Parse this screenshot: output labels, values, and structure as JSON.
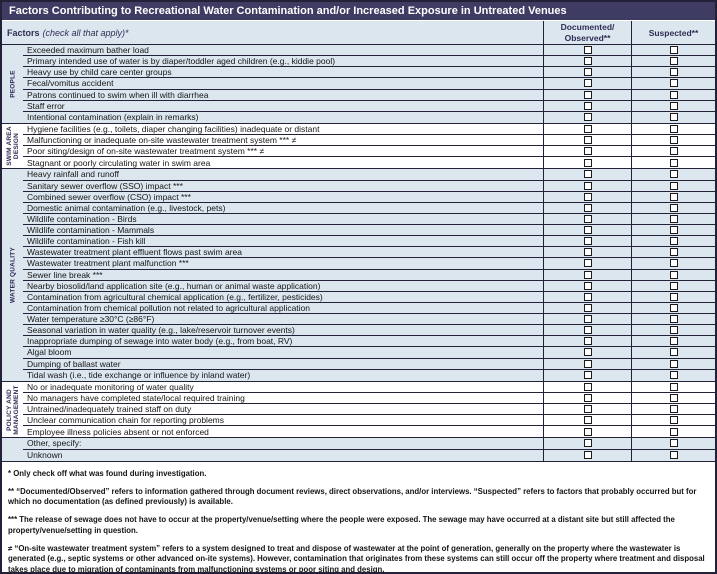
{
  "title": "Factors Contributing to Recreational Water Contamination and/or Increased Exposure in Untreated Venues",
  "header": {
    "factors_bold": "Factors",
    "factors_italic": "(check all that apply)*",
    "col_documented": [
      "Documented/",
      "Observed**"
    ],
    "col_suspected": "Suspected**"
  },
  "table": {
    "checkboxes_all_unchecked": true,
    "groups": [
      {
        "label": "PEOPLE",
        "shade": "blue",
        "rows": [
          "Exceeded maximum bather load",
          "Primary intended use of water is by diaper/toddler aged children (e.g., kiddie pool)",
          "Heavy use by child care center groups",
          "Fecal/vomitus accident",
          "Patrons continued to swim when ill with diarrhea",
          "Staff error",
          "Intentional contamination (explain in remarks)"
        ]
      },
      {
        "label": "SWIM AREA\nDESIGN",
        "shade": "white",
        "rows": [
          "Hygiene facilities (e.g., toilets, diaper changing facilities) inadequate or distant",
          "Malfunctioning or inadequate on-site wastewater treatment system *** ≠",
          "Poor siting/design of on-site wastewater treatment system *** ≠",
          "Stagnant or poorly circulating water in swim area"
        ]
      },
      {
        "label": "WATER QUALITY",
        "shade": "blue",
        "rows": [
          "Heavy rainfall and runoff",
          "Sanitary sewer overflow (SSO) impact ***",
          "Combined sewer overflow (CSO) impact ***",
          "Domestic animal contamination (e.g., livestock, pets)",
          "Wildlife contamination - Birds",
          "Wildlife contamination - Mammals",
          "Wildlife contamination - Fish kill",
          "Wastewater treatment plant effluent flows past swim area",
          "Wastewater treatment plant malfunction ***",
          "Sewer line break ***",
          "Nearby biosolid/land application site (e.g., human or animal waste application)",
          "Contamination from agricultural chemical application (e.g., fertilizer, pesticides)",
          "Contamination from chemical pollution not related to agricultural application",
          "Water temperature ≥30°C (≥86°F)",
          "Seasonal variation in water quality (e.g., lake/reservoir turnover events)",
          "Inappropriate dumping of sewage into water body (e.g., from boat, RV)",
          "Algal bloom",
          "Dumping of ballast water",
          "Tidal wash (i.e., tide exchange or influence by inland water)"
        ]
      },
      {
        "label": "POLICY AND\nMANAGEMENT",
        "shade": "white",
        "rows": [
          "No or inadequate monitoring of water quality",
          "No managers have completed state/local required training",
          "Untrained/inadequately trained staff on duty",
          "Unclear communication chain for reporting problems",
          "Employee illness policies absent or not enforced"
        ]
      },
      {
        "label": "",
        "shade": "blue",
        "rows": [
          "Other, specify:",
          "Unknown"
        ]
      }
    ]
  },
  "footnotes": [
    "* Only check off what was found during investigation.",
    "** “Documented/Observed” refers to information gathered through document reviews, direct observations, and/or interviews. “Suspected” refers to factors that probably occurred but for which no documentation (as defined previously) is available.",
    "*** The release of sewage does not have to occur at the property/venue/setting where the people were exposed. The sewage may have occurred at a distant site but still affected the property/venue/setting in question.",
    "≠ “On-site wastewater treatment system” refers to a system designed to treat and dispose of wastewater at the point of generation, generally on the property where the wastewater is generated (e.g., septic systems or other advanced on-ite systems). However, contamination that originates from these systems can still occur off the property where treatment and disposal takes place due to migration of contaminants from malfunctioning systems or poor siting and design."
  ],
  "colors": {
    "title_bar_bg": "#3f3c63",
    "row_blue": "#dce6ee",
    "row_white": "#ffffff",
    "grid_line": "#232138",
    "header_text": "#2f2d55"
  }
}
